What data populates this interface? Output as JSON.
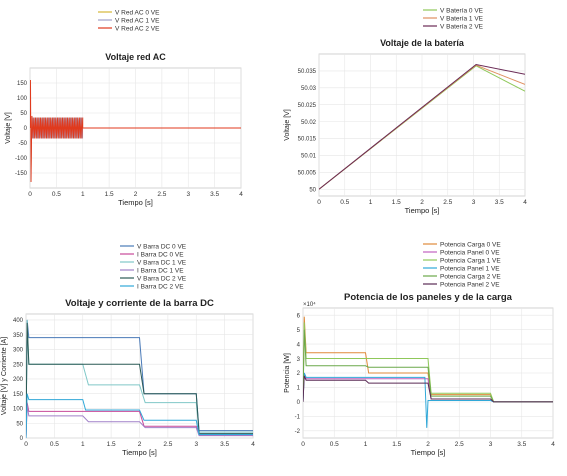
{
  "chart_data": [
    {
      "type": "line",
      "title": "Voltaje red AC",
      "xlabel": "Tiempo [s]",
      "ylabel": "Voltaje [V]",
      "xlim": [
        0,
        4
      ],
      "ylim": [
        -200,
        200
      ],
      "xticks": [
        "0",
        "0.5",
        "1",
        "1.5",
        "2",
        "2.5",
        "3",
        "3.5",
        "4"
      ],
      "yticks": [
        "150",
        "100",
        "50",
        "0",
        "-50",
        "-100",
        "-150"
      ],
      "grid": true,
      "legend_position": "top-center",
      "series": [
        {
          "name": "V Red AC 0 VE",
          "color": "#d4b83a",
          "amplitude": 35,
          "x": [
            0,
            1,
            1,
            4
          ],
          "y": [
            0,
            0,
            0,
            0
          ]
        },
        {
          "name": "V Red AC 1 VE",
          "color": "#a0a0c8",
          "amplitude": 35,
          "x": [
            0,
            1,
            1,
            4
          ],
          "y": [
            0,
            0,
            0,
            0
          ]
        },
        {
          "name": "V Red AC 2 VE",
          "color": "#e03a1e",
          "amplitude": 35,
          "x": [
            0,
            1,
            1,
            4
          ],
          "y": [
            0,
            0,
            0,
            0
          ]
        }
      ]
    },
    {
      "type": "line",
      "title": "Voltaje de la batería",
      "xlabel": "Tiempo [s]",
      "ylabel": "Voltaje [V]",
      "xlim": [
        0,
        4
      ],
      "ylim": [
        49.998,
        50.04
      ],
      "xticks": [
        "0",
        "0.5",
        "1",
        "1.5",
        "2",
        "2.5",
        "3",
        "3.5",
        "4"
      ],
      "yticks": [
        "50.035",
        "50.03",
        "50.025",
        "50.02",
        "50.015",
        "50.01",
        "50.005",
        "50"
      ],
      "grid": true,
      "legend_position": "top-center",
      "series": [
        {
          "name": "V Batería 0 VE",
          "color": "#8fc85a",
          "x": [
            0,
            3.05,
            4
          ],
          "y": [
            50,
            50.0365,
            50.029
          ]
        },
        {
          "name": "V Batería 1 VE",
          "color": "#e09060",
          "x": [
            0,
            3.05,
            4
          ],
          "y": [
            50,
            50.0367,
            50.031
          ]
        },
        {
          "name": "V Batería 2 VE",
          "color": "#6a2a55",
          "x": [
            0,
            3.05,
            4
          ],
          "y": [
            50,
            50.0369,
            50.034
          ]
        }
      ]
    },
    {
      "type": "line",
      "title": "Voltaje y corriente de la barra DC",
      "xlabel": "Tiempo [s]",
      "ylabel": "Voltaje [V] y Corriente [A]",
      "xlim": [
        0,
        4
      ],
      "ylim": [
        0,
        420
      ],
      "xticks": [
        "0",
        "0.5",
        "1",
        "1.5",
        "2",
        "2.5",
        "3",
        "3.5",
        "4"
      ],
      "yticks": [
        "400",
        "350",
        "300",
        "250",
        "200",
        "150",
        "100",
        "50",
        "0"
      ],
      "grid": true,
      "legend_position": "top-center",
      "series": [
        {
          "name": "V Barra DC 0 VE",
          "color": "#4a7ab8",
          "x": [
            0,
            0.02,
            0.05,
            1.95,
            2.0,
            2.08,
            3.0,
            3.05,
            4
          ],
          "y": [
            0,
            400,
            340,
            340,
            340,
            150,
            150,
            25,
            25
          ]
        },
        {
          "name": "I Barra DC 0 VE",
          "color": "#c84a9a",
          "x": [
            0,
            0.02,
            0.05,
            1.95,
            2.0,
            2.08,
            3.0,
            3.05,
            4
          ],
          "y": [
            0,
            120,
            90,
            90,
            90,
            40,
            40,
            10,
            10
          ]
        },
        {
          "name": "V Barra DC 1 VE",
          "color": "#80c8c8",
          "x": [
            0,
            0.02,
            0.05,
            1.0,
            1.1,
            2.0,
            2.1,
            3.0,
            3.05,
            4
          ],
          "y": [
            0,
            400,
            250,
            250,
            180,
            180,
            120,
            120,
            20,
            20
          ]
        },
        {
          "name": "I Barra DC 1 VE",
          "color": "#a080c8",
          "x": [
            0,
            0.02,
            0.05,
            1.0,
            1.1,
            2.0,
            2.1,
            3.0,
            3.05,
            4
          ],
          "y": [
            0,
            110,
            75,
            75,
            55,
            55,
            35,
            35,
            8,
            8
          ]
        },
        {
          "name": "V Barra DC 2 VE",
          "color": "#2a5a55",
          "x": [
            0,
            0.02,
            0.05,
            1.95,
            2.0,
            2.08,
            3.0,
            3.05,
            4
          ],
          "y": [
            0,
            390,
            250,
            250,
            250,
            150,
            150,
            15,
            15
          ]
        },
        {
          "name": "I Barra DC 2 VE",
          "color": "#30a8d8",
          "x": [
            0,
            0.02,
            0.05,
            1.0,
            1.05,
            1.95,
            2.0,
            2.08,
            3.0,
            3.05,
            4
          ],
          "y": [
            0,
            150,
            130,
            130,
            95,
            95,
            95,
            60,
            60,
            12,
            12
          ]
        }
      ]
    },
    {
      "type": "line",
      "title": "Potencia de los paneles y de la carga",
      "xlabel": "Tiempo [s]",
      "ylabel": "Potencia [W]",
      "yscale_label": "×10⁴",
      "xlim": [
        0,
        4
      ],
      "ylim": [
        -2.5,
        6.5
      ],
      "xticks": [
        "0",
        "0.5",
        "1",
        "1.5",
        "2",
        "2.5",
        "3",
        "3.5",
        "4"
      ],
      "yticks": [
        "6",
        "5",
        "4",
        "3",
        "2",
        "1",
        "0",
        "-1",
        "-2"
      ],
      "grid": true,
      "legend_position": "top-center",
      "series": [
        {
          "name": "Potencia Carga 0 VE",
          "color": "#e08a3a",
          "x": [
            0,
            0.02,
            0.05,
            1.0,
            1.05,
            2.0,
            2.05,
            3.0,
            3.05,
            4
          ],
          "y": [
            0,
            5.9,
            3.4,
            3.4,
            2.0,
            2.0,
            0.5,
            0.5,
            0,
            0
          ]
        },
        {
          "name": "Potencia Panel 0 VE",
          "color": "#c060c0",
          "x": [
            0,
            0.02,
            0.05,
            2.0,
            2.05,
            3.0,
            3.05,
            4
          ],
          "y": [
            0,
            2.0,
            1.6,
            1.6,
            0.2,
            0.2,
            0,
            0
          ]
        },
        {
          "name": "Potencia Carga 1 VE",
          "color": "#8fc85a",
          "x": [
            0,
            0.02,
            0.05,
            2.0,
            2.05,
            3.0,
            3.05,
            4
          ],
          "y": [
            0,
            5.5,
            3.0,
            3.0,
            0.6,
            0.6,
            0,
            0
          ]
        },
        {
          "name": "Potencia Panel 1 VE",
          "color": "#30a8d8",
          "x": [
            0,
            0.02,
            0.05,
            1.95,
            1.98,
            2.0,
            2.05,
            3.0,
            3.05,
            4
          ],
          "y": [
            0,
            2.0,
            1.7,
            1.7,
            -1.8,
            0.1,
            0.1,
            0.1,
            0,
            0
          ]
        },
        {
          "name": "Potencia Carga 2 VE",
          "color": "#6aa84a",
          "x": [
            0,
            0.02,
            0.05,
            1.0,
            1.05,
            2.0,
            2.05,
            3.0,
            3.05,
            4
          ],
          "y": [
            0,
            5.0,
            2.5,
            2.5,
            2.4,
            2.4,
            0.4,
            0.4,
            0,
            0
          ]
        },
        {
          "name": "Potencia Panel 2 VE",
          "color": "#5a2a55",
          "x": [
            0,
            0.02,
            0.05,
            1.0,
            1.05,
            2.0,
            2.05,
            3.0,
            3.05,
            4
          ],
          "y": [
            0,
            1.8,
            1.5,
            1.5,
            1.3,
            1.3,
            0.2,
            0.2,
            0,
            0
          ]
        }
      ]
    }
  ]
}
